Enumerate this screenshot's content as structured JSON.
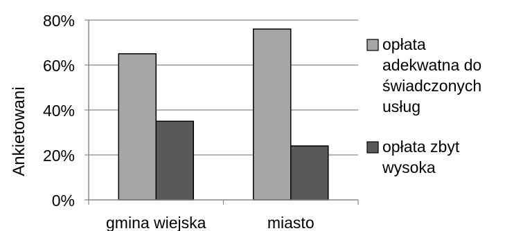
{
  "chart_data": {
    "type": "bar",
    "title": "",
    "xlabel": "",
    "ylabel": "Ankietowani",
    "categories": [
      "gmina wiejska",
      "miasto"
    ],
    "series": [
      {
        "name": "opłata adekwatna do świadczonych usług",
        "name_lines": [
          "opłata",
          "adekwatna do",
          "świadczonych",
          "usług"
        ],
        "values": [
          65,
          76
        ],
        "color": "#a6a6a6"
      },
      {
        "name": "opłata zbyt wysoka",
        "name_lines": [
          "opłata zbyt",
          "wysoka"
        ],
        "values": [
          35,
          24
        ],
        "color": "#595959"
      }
    ],
    "ylim": [
      0,
      80
    ],
    "yticks": [
      0,
      20,
      40,
      60,
      80
    ],
    "ytick_labels": [
      "0%",
      "20%",
      "40%",
      "60%",
      "80%"
    ],
    "grid": true,
    "legend_position": "right"
  }
}
